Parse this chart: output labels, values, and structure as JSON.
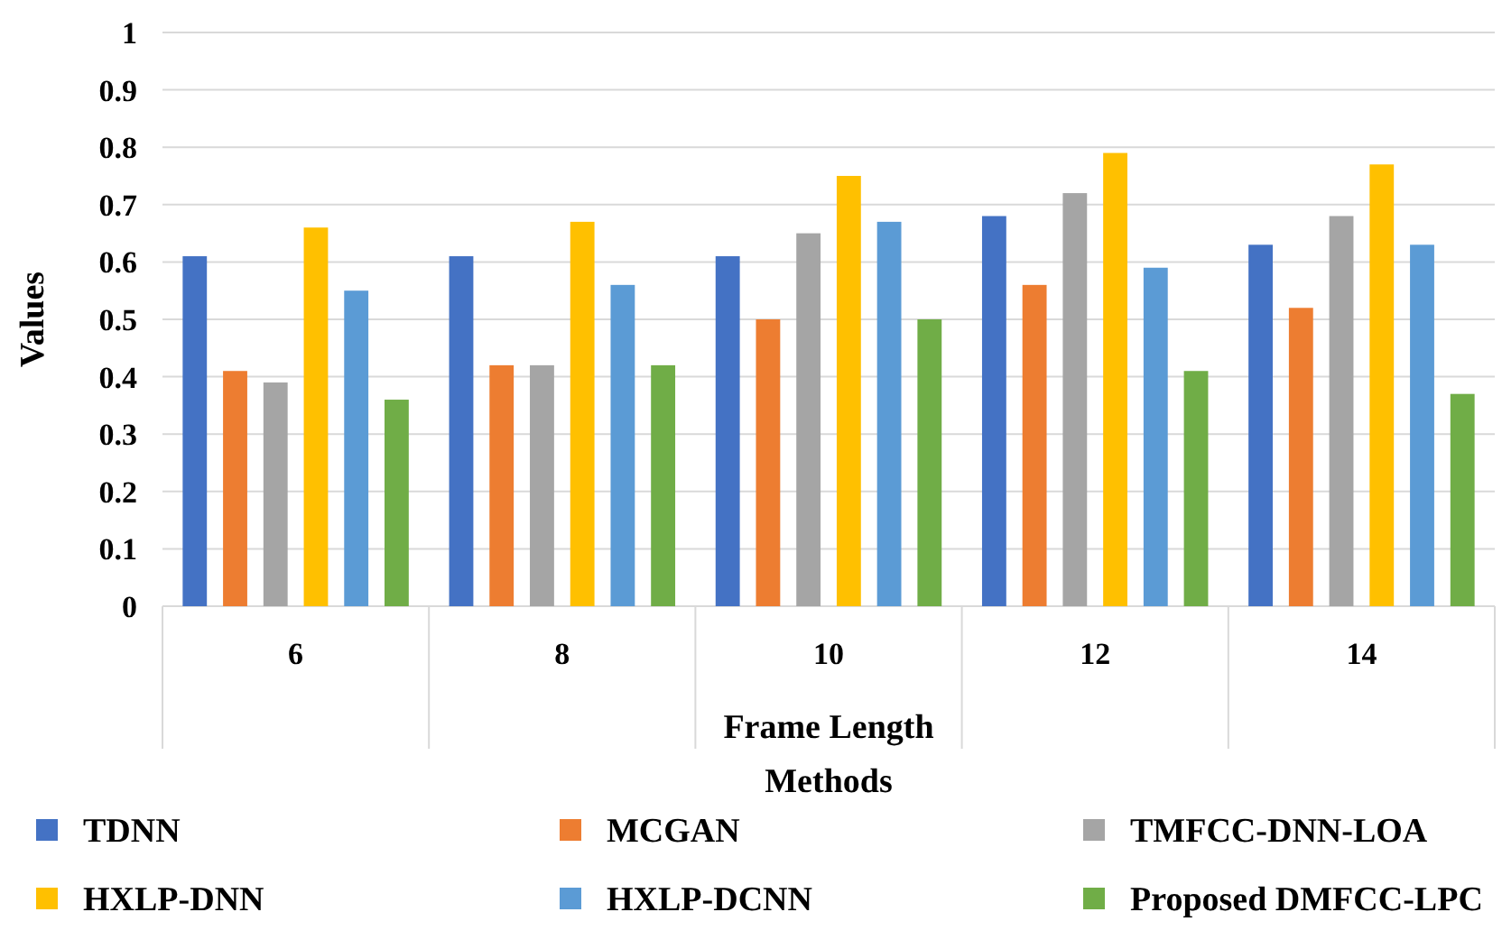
{
  "chart_data": {
    "type": "bar",
    "xlabel": "Frame Length",
    "ylabel": "Values",
    "legend_title": "Methods",
    "categories": [
      "6",
      "8",
      "10",
      "12",
      "14"
    ],
    "series": [
      {
        "name": "TDNN",
        "color": "#4472c4",
        "values": [
          0.61,
          0.61,
          0.61,
          0.68,
          0.63
        ]
      },
      {
        "name": "MCGAN",
        "color": "#ed7d31",
        "values": [
          0.41,
          0.42,
          0.5,
          0.56,
          0.52
        ]
      },
      {
        "name": "TMFCC-DNN-LOA",
        "color": "#a5a5a5",
        "values": [
          0.39,
          0.42,
          0.65,
          0.72,
          0.68
        ]
      },
      {
        "name": "HXLP-DNN",
        "color": "#ffc000",
        "values": [
          0.66,
          0.67,
          0.75,
          0.79,
          0.77
        ]
      },
      {
        "name": "HXLP-DCNN",
        "color": "#5b9bd5",
        "values": [
          0.55,
          0.56,
          0.67,
          0.59,
          0.63
        ]
      },
      {
        "name": "Proposed DMFCC-LPC",
        "color": "#70ad47",
        "values": [
          0.36,
          0.42,
          0.5,
          0.41,
          0.37
        ]
      }
    ],
    "ylim": [
      0,
      1
    ],
    "yticks": [
      0,
      0.1,
      0.2,
      0.3,
      0.4,
      0.5,
      0.6,
      0.7,
      0.8,
      0.9,
      1
    ],
    "grid": "y",
    "legend": "bottom"
  }
}
